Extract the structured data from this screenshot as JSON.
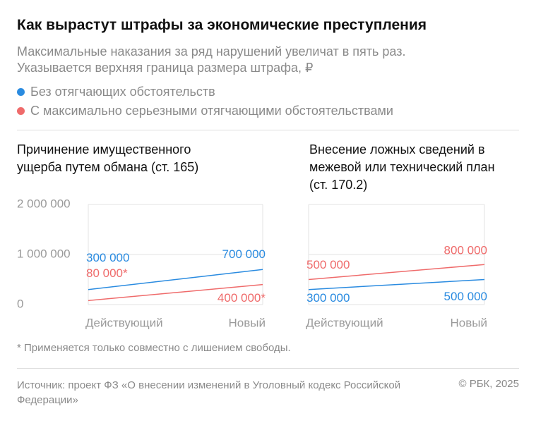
{
  "header": {
    "title": "Как вырастут штрафы за экономические преступления",
    "subtitle": "Максимальные наказания за ряд нарушений увеличат в пять раз. Указывается верхняя граница размера штрафа, ₽"
  },
  "chart_data": [
    {
      "type": "line",
      "title": "Причинение имущественного ущерба путем обмана (ст. 165)",
      "categories": [
        "Действующий",
        "Новый"
      ],
      "series": [
        {
          "name": "Без отягчающих обстоятельств",
          "color": "#2a8be0",
          "values": [
            300000,
            700000
          ],
          "value_labels": [
            "300 000",
            "700 000"
          ]
        },
        {
          "name": "С максимально серьезными отягчающими обстоятельствами",
          "color": "#ef6b6b",
          "values": [
            80000,
            400000
          ],
          "value_labels": [
            "80 000*",
            "400 000*"
          ]
        }
      ],
      "ylim": [
        0,
        2000000
      ],
      "yticks": [
        {
          "value": 0,
          "label": "0"
        },
        {
          "value": 1000000,
          "label": "1 000 000"
        },
        {
          "value": 2000000,
          "label": "2 000 000"
        }
      ],
      "grid": true
    },
    {
      "type": "line",
      "title": "Внесение ложных сведений в межевой или технический план (ст. 170.2)",
      "categories": [
        "Действующий",
        "Новый"
      ],
      "series": [
        {
          "name": "Без отягчающих обстоятельств",
          "color": "#2a8be0",
          "values": [
            300000,
            500000
          ],
          "value_labels": [
            "300 000",
            "500 000"
          ]
        },
        {
          "name": "С максимально серьезными отягчающими обстоятельствами",
          "color": "#ef6b6b",
          "values": [
            500000,
            800000
          ],
          "value_labels": [
            "500 000",
            "800 000"
          ]
        }
      ],
      "ylim": [
        0,
        2000000
      ],
      "yticks": [
        0,
        1000000,
        2000000
      ],
      "grid": true
    }
  ],
  "footnote": "* Применяется только совместно с лишением свободы.",
  "source": "Источник: проект ФЗ «О внесении изменений в Уголовный кодекс Российской Федерации»",
  "copyright": "© РБК, 2025"
}
